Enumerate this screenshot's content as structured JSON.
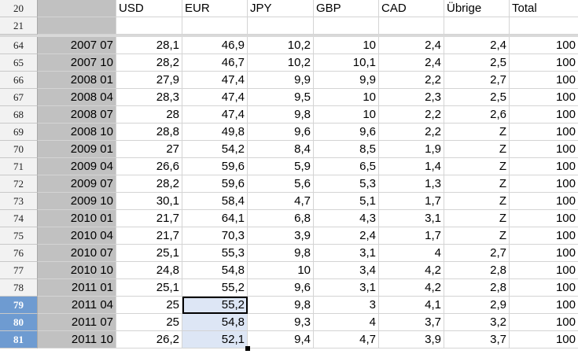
{
  "header_rows": [
    {
      "num": "20",
      "cols": [
        "",
        "USD",
        "EUR",
        "JPY",
        "GBP",
        "CAD",
        "Übrige",
        "Total"
      ]
    },
    {
      "num": "21",
      "cols": [
        "",
        "",
        "",
        "",
        "",
        "",
        "",
        ""
      ]
    }
  ],
  "data_rows": [
    {
      "num": "64",
      "cols": [
        "2007 07",
        "28,1",
        "46,9",
        "10,2",
        "10",
        "2,4",
        "2,4",
        "100"
      ]
    },
    {
      "num": "65",
      "cols": [
        "2007 10",
        "28,2",
        "46,7",
        "10,2",
        "10,1",
        "2,4",
        "2,5",
        "100"
      ]
    },
    {
      "num": "66",
      "cols": [
        "2008 01",
        "27,9",
        "47,4",
        "9,9",
        "9,9",
        "2,2",
        "2,7",
        "100"
      ]
    },
    {
      "num": "67",
      "cols": [
        "2008 04",
        "28,3",
        "47,4",
        "9,5",
        "10",
        "2,3",
        "2,5",
        "100"
      ]
    },
    {
      "num": "68",
      "cols": [
        "2008 07",
        "28",
        "47,4",
        "9,8",
        "10",
        "2,2",
        "2,6",
        "100"
      ]
    },
    {
      "num": "69",
      "cols": [
        "2008 10",
        "28,8",
        "49,8",
        "9,6",
        "9,6",
        "2,2",
        "Z",
        "100"
      ]
    },
    {
      "num": "70",
      "cols": [
        "2009 01",
        "27",
        "54,2",
        "8,4",
        "8,5",
        "1,9",
        "Z",
        "100"
      ]
    },
    {
      "num": "71",
      "cols": [
        "2009 04",
        "26,6",
        "59,6",
        "5,9",
        "6,5",
        "1,4",
        "Z",
        "100"
      ]
    },
    {
      "num": "72",
      "cols": [
        "2009 07",
        "28,2",
        "59,6",
        "5,6",
        "5,3",
        "1,3",
        "Z",
        "100"
      ]
    },
    {
      "num": "73",
      "cols": [
        "2009 10",
        "30,1",
        "58,4",
        "4,7",
        "5,1",
        "1,7",
        "Z",
        "100"
      ]
    },
    {
      "num": "74",
      "cols": [
        "2010 01",
        "21,7",
        "64,1",
        "6,8",
        "4,3",
        "3,1",
        "Z",
        "100"
      ]
    },
    {
      "num": "75",
      "cols": [
        "2010 04",
        "21,7",
        "70,3",
        "3,9",
        "2,4",
        "1,7",
        "Z",
        "100"
      ]
    },
    {
      "num": "76",
      "cols": [
        "2010 07",
        "25,1",
        "55,3",
        "9,8",
        "3,1",
        "4",
        "2,7",
        "100"
      ]
    },
    {
      "num": "77",
      "cols": [
        "2010 10",
        "24,8",
        "54,8",
        "10",
        "3,4",
        "4,2",
        "2,8",
        "100"
      ]
    },
    {
      "num": "78",
      "cols": [
        "2011 01",
        "25,1",
        "55,2",
        "9,6",
        "3,1",
        "4,2",
        "2,8",
        "100"
      ]
    },
    {
      "num": "79",
      "cols": [
        "2011 04",
        "25",
        "55,2",
        "9,8",
        "3",
        "4,1",
        "2,9",
        "100"
      ],
      "selected": true
    },
    {
      "num": "80",
      "cols": [
        "2011 07",
        "25",
        "54,8",
        "9,3",
        "4",
        "3,7",
        "3,2",
        "100"
      ],
      "selected": true
    },
    {
      "num": "81",
      "cols": [
        "2011 10",
        "26,2",
        "52,1",
        "9,4",
        "4,7",
        "3,9",
        "3,7",
        "100"
      ],
      "selected": true
    }
  ],
  "colors": {
    "row_header_bg": "#f2f2f2",
    "selected_row_header": "#6e9bd1",
    "selection_fill": "#dde6f5",
    "column_a_fill": "#c1c1c1"
  }
}
